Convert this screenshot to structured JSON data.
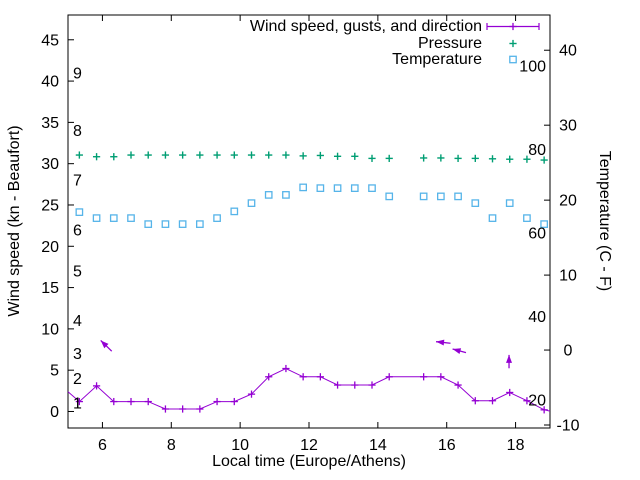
{
  "chart_data": {
    "type": "line",
    "title": "",
    "x_axis": {
      "label": "Local time (Europe/Athens)",
      "range": [
        5,
        19
      ],
      "ticks": [
        6,
        8,
        10,
        12,
        14,
        16,
        18
      ]
    },
    "y_left_axis": {
      "label": "Wind speed (kn - Beaufort)",
      "range": [
        -2,
        48
      ],
      "ticks": [
        0,
        5,
        10,
        15,
        20,
        25,
        30,
        35,
        40,
        45
      ]
    },
    "y_right_axis": {
      "label": "Temperature (C - F)",
      "range": [
        -10.4,
        44.7
      ],
      "ticks": [
        -10,
        0,
        10,
        20,
        30,
        40
      ]
    },
    "beaufort_scale_labels": [
      {
        "label": "1",
        "kn": 1
      },
      {
        "label": "2",
        "kn": 4
      },
      {
        "label": "3",
        "kn": 7
      },
      {
        "label": "4",
        "kn": 11
      },
      {
        "label": "5",
        "kn": 17
      },
      {
        "label": "6",
        "kn": 22
      },
      {
        "label": "7",
        "kn": 28
      },
      {
        "label": "8",
        "kn": 34
      },
      {
        "label": "9",
        "kn": 41
      }
    ],
    "pressure_scale_labels": [
      {
        "label": "100",
        "p": 100
      },
      {
        "label": "80",
        "p": 80
      },
      {
        "label": "60",
        "p": 60
      },
      {
        "label": "40",
        "p": 40
      },
      {
        "label": "20",
        "p": 20
      }
    ],
    "pressure_to_kn": {
      "p_ref": 20,
      "kn_ref": 1.39,
      "kn_per_p": 0.5052
    },
    "legend": [
      {
        "label": "Wind speed, gusts, and direction",
        "marker": "line-with-plus",
        "color": "#9400d3"
      },
      {
        "label": "Pressure",
        "marker": "plus",
        "color": "#009e73"
      },
      {
        "label": "Temperature",
        "marker": "open-square",
        "color": "#56b4e9"
      }
    ],
    "series": {
      "times": [
        5.33,
        5.83,
        6.33,
        6.83,
        7.33,
        7.83,
        8.33,
        8.83,
        9.33,
        9.83,
        10.33,
        10.83,
        11.33,
        11.83,
        12.33,
        12.83,
        13.33,
        13.83,
        14.33,
        15.33,
        15.83,
        16.33,
        16.83,
        17.33,
        17.83,
        18.33,
        18.83
      ],
      "wind_kn": [
        1.2,
        3.1,
        1.2,
        1.2,
        1.2,
        0.3,
        0.3,
        0.3,
        1.2,
        1.2,
        2.1,
        4.2,
        5.2,
        4.2,
        4.2,
        3.2,
        3.2,
        3.2,
        4.2,
        4.2,
        4.2,
        3.2,
        1.3,
        1.3,
        2.3,
        1.3,
        0.2
      ],
      "pressure_scale": [
        78.7,
        78.3,
        78.3,
        78.7,
        78.7,
        78.7,
        78.7,
        78.7,
        78.7,
        78.7,
        78.7,
        78.7,
        78.7,
        78.5,
        78.6,
        78.4,
        78.4,
        77.9,
        77.9,
        78.0,
        78.0,
        77.9,
        77.9,
        77.8,
        77.7,
        77.7,
        77.5
      ],
      "temperature_c": [
        18.4,
        17.6,
        17.6,
        17.6,
        16.8,
        16.8,
        16.8,
        16.8,
        17.6,
        18.5,
        19.6,
        20.7,
        20.7,
        21.7,
        21.6,
        21.6,
        21.6,
        21.6,
        20.5,
        20.5,
        20.5,
        20.5,
        19.6,
        17.6,
        19.6,
        17.6,
        16.8
      ],
      "missing_sample_time": 14.83
    },
    "wind_line_edge_points": {
      "start": [
        5.0,
        2.4
      ],
      "end": [
        19.0,
        0.05
      ]
    },
    "direction_arrows": [
      {
        "tail": [
          6.27,
          7.3
        ],
        "tip": [
          5.95,
          8.6
        ]
      },
      {
        "tail": [
          16.11,
          8.26
        ],
        "tip": [
          15.69,
          8.45
        ]
      },
      {
        "tail": [
          16.56,
          7.12
        ],
        "tip": [
          16.17,
          7.57
        ]
      },
      {
        "tail": [
          17.81,
          5.23
        ],
        "tip": [
          17.81,
          6.85
        ]
      }
    ],
    "colors": {
      "wind": "#9400d3",
      "pressure": "#009e73",
      "temperature": "#56b4e9",
      "axis": "#000000",
      "background": "#ffffff"
    }
  }
}
